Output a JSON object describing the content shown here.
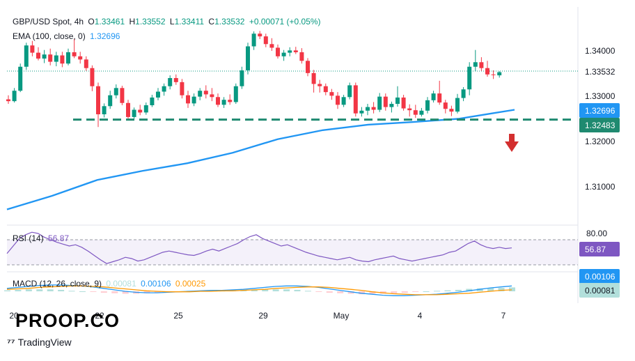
{
  "header": {
    "symbol": "GBP/USD Spot, 4h",
    "open_label": "O",
    "open": "1.33461",
    "high_label": "H",
    "high": "1.33552",
    "low_label": "L",
    "low": "1.33411",
    "close_label": "C",
    "close": "1.33532",
    "change": "+0.00071 (+0.05%)",
    "ema_label": "EMA (100, close, 0)",
    "ema_value": "1.32696",
    "rsi_label": "RSI (14)",
    "rsi_value": "56.87",
    "macd_label": "MACD (12, 26, close, 9)",
    "macd_hist": "0.00081",
    "macd_line": "0.00106",
    "macd_signal": "0.00025"
  },
  "watermark": {
    "brand": "PROOP.CO",
    "provider": "TradingView"
  },
  "colors": {
    "bull": "#089981",
    "bear": "#f23645",
    "ema": "#2196f3",
    "support": "#1f8a70",
    "rsi": "#7e57c2",
    "macd": "#2196f3",
    "signal": "#ff9800",
    "arrow": "#d32f2f"
  },
  "chart_data": {
    "type": "candlestick",
    "price_axis": {
      "ticks": [
        "1.34000",
        "1.33000",
        "1.32000",
        "1.31000"
      ],
      "range": [
        1.3045,
        1.3475
      ]
    },
    "price_badges": {
      "last": "1.33532",
      "ema": "1.32696",
      "support": "1.32483"
    },
    "x_labels": [
      "20",
      "22",
      "25",
      "29",
      "May",
      "4",
      "7"
    ],
    "candles": [
      [
        1.3293,
        1.3302,
        1.3283,
        1.3289
      ],
      [
        1.3289,
        1.3318,
        1.3286,
        1.3312
      ],
      [
        1.3312,
        1.3372,
        1.3309,
        1.3365
      ],
      [
        1.3365,
        1.3418,
        1.3358,
        1.3412
      ],
      [
        1.3412,
        1.3422,
        1.3388,
        1.3396
      ],
      [
        1.3396,
        1.3408,
        1.3379,
        1.3383
      ],
      [
        1.3383,
        1.3402,
        1.3373,
        1.3392
      ],
      [
        1.3392,
        1.3405,
        1.3368,
        1.3376
      ],
      [
        1.3376,
        1.3398,
        1.3366,
        1.339
      ],
      [
        1.339,
        1.3398,
        1.3364,
        1.3372
      ],
      [
        1.3372,
        1.3405,
        1.3368,
        1.3397
      ],
      [
        1.3397,
        1.3426,
        1.3384,
        1.3388
      ],
      [
        1.3388,
        1.3398,
        1.3372,
        1.3381
      ],
      [
        1.3381,
        1.3388,
        1.3356,
        1.3362
      ],
      [
        1.3362,
        1.3368,
        1.3311,
        1.3322
      ],
      [
        1.3322,
        1.333,
        1.3232,
        1.326
      ],
      [
        1.326,
        1.3284,
        1.3253,
        1.3278
      ],
      [
        1.3278,
        1.3312,
        1.3272,
        1.3302
      ],
      [
        1.3302,
        1.3326,
        1.3295,
        1.3318
      ],
      [
        1.3318,
        1.3323,
        1.328,
        1.3285
      ],
      [
        1.3285,
        1.3292,
        1.3247,
        1.3254
      ],
      [
        1.3254,
        1.3275,
        1.325,
        1.327
      ],
      [
        1.327,
        1.3281,
        1.3258,
        1.3264
      ],
      [
        1.3264,
        1.3286,
        1.3259,
        1.328
      ],
      [
        1.328,
        1.3303,
        1.3276,
        1.3297
      ],
      [
        1.3297,
        1.3318,
        1.3291,
        1.331
      ],
      [
        1.331,
        1.3328,
        1.3301,
        1.3322
      ],
      [
        1.3322,
        1.3346,
        1.3315,
        1.334
      ],
      [
        1.334,
        1.3348,
        1.3325,
        1.3331
      ],
      [
        1.3331,
        1.3338,
        1.3295,
        1.3302
      ],
      [
        1.3302,
        1.3312,
        1.3274,
        1.3284
      ],
      [
        1.3284,
        1.3306,
        1.3278,
        1.3299
      ],
      [
        1.3299,
        1.3318,
        1.3291,
        1.3312
      ],
      [
        1.3312,
        1.3324,
        1.3295,
        1.3304
      ],
      [
        1.3304,
        1.3318,
        1.3289,
        1.3298
      ],
      [
        1.3298,
        1.3306,
        1.3276,
        1.3281
      ],
      [
        1.3281,
        1.3298,
        1.3274,
        1.3292
      ],
      [
        1.3292,
        1.3304,
        1.3281,
        1.3287
      ],
      [
        1.3287,
        1.3328,
        1.3283,
        1.3322
      ],
      [
        1.3322,
        1.3365,
        1.3316,
        1.3357
      ],
      [
        1.3357,
        1.3418,
        1.3348,
        1.341
      ],
      [
        1.341,
        1.3443,
        1.3402,
        1.3438
      ],
      [
        1.3438,
        1.3444,
        1.3426,
        1.3432
      ],
      [
        1.3432,
        1.3438,
        1.3408,
        1.3415
      ],
      [
        1.3415,
        1.3428,
        1.34,
        1.3407
      ],
      [
        1.3407,
        1.3414,
        1.3383,
        1.3388
      ],
      [
        1.3388,
        1.3402,
        1.3378,
        1.3396
      ],
      [
        1.3396,
        1.3408,
        1.3388,
        1.3401
      ],
      [
        1.3401,
        1.3409,
        1.3393,
        1.3397
      ],
      [
        1.3397,
        1.3406,
        1.3372,
        1.3378
      ],
      [
        1.3378,
        1.3384,
        1.3344,
        1.3351
      ],
      [
        1.3351,
        1.3358,
        1.3308,
        1.3327
      ],
      [
        1.3327,
        1.3336,
        1.3308,
        1.3322
      ],
      [
        1.3322,
        1.3328,
        1.3302,
        1.3309
      ],
      [
        1.3309,
        1.3316,
        1.3292,
        1.3301
      ],
      [
        1.3301,
        1.3309,
        1.3272,
        1.3281
      ],
      [
        1.3281,
        1.3303,
        1.3276,
        1.3298
      ],
      [
        1.3298,
        1.333,
        1.3293,
        1.3324
      ],
      [
        1.3324,
        1.333,
        1.3255,
        1.3262
      ],
      [
        1.3262,
        1.3276,
        1.3255,
        1.3268
      ],
      [
        1.3268,
        1.3283,
        1.3258,
        1.3276
      ],
      [
        1.3276,
        1.3287,
        1.3262,
        1.327
      ],
      [
        1.327,
        1.3307,
        1.3265,
        1.3299
      ],
      [
        1.3299,
        1.3306,
        1.3268,
        1.3276
      ],
      [
        1.3276,
        1.3288,
        1.3264,
        1.3283
      ],
      [
        1.3283,
        1.3322,
        1.3277,
        1.3297
      ],
      [
        1.3297,
        1.3303,
        1.3268,
        1.3273
      ],
      [
        1.3273,
        1.3282,
        1.3255,
        1.3269
      ],
      [
        1.3269,
        1.3281,
        1.3252,
        1.3259
      ],
      [
        1.3259,
        1.3274,
        1.3255,
        1.3268
      ],
      [
        1.3268,
        1.3298,
        1.3262,
        1.3291
      ],
      [
        1.3291,
        1.3312,
        1.3286,
        1.3306
      ],
      [
        1.3306,
        1.3334,
        1.3281,
        1.3286
      ],
      [
        1.3286,
        1.3292,
        1.3262,
        1.3272
      ],
      [
        1.3272,
        1.3279,
        1.3256,
        1.3266
      ],
      [
        1.3266,
        1.3305,
        1.3262,
        1.3296
      ],
      [
        1.3296,
        1.332,
        1.3289,
        1.3315
      ],
      [
        1.3315,
        1.3375,
        1.3302,
        1.3365
      ],
      [
        1.3365,
        1.3402,
        1.3355,
        1.3375
      ],
      [
        1.3375,
        1.3386,
        1.3356,
        1.3362
      ],
      [
        1.3362,
        1.3378,
        1.3343,
        1.3348
      ],
      [
        1.3348,
        1.3357,
        1.3338,
        1.3347
      ],
      [
        1.3346,
        1.3355,
        1.3341,
        1.3353
      ]
    ],
    "ema": [
      [
        0,
        1.305
      ],
      [
        8,
        1.308
      ],
      [
        16,
        1.3115
      ],
      [
        24,
        1.3135
      ],
      [
        32,
        1.3152
      ],
      [
        40,
        1.3175
      ],
      [
        48,
        1.3205
      ],
      [
        56,
        1.3225
      ],
      [
        64,
        1.3237
      ],
      [
        72,
        1.3243
      ],
      [
        80,
        1.325
      ],
      [
        86,
        1.3262
      ],
      [
        90,
        1.327
      ]
    ],
    "support_level": 1.32483,
    "rsi": {
      "range": [
        0,
        100
      ],
      "ticks": [
        "80.00"
      ],
      "bands": [
        70,
        30
      ],
      "value": "56.87",
      "series": [
        48,
        60,
        72,
        78,
        82,
        80,
        74,
        70,
        66,
        63,
        60,
        62,
        58,
        52,
        45,
        38,
        32,
        35,
        38,
        42,
        40,
        36,
        38,
        42,
        46,
        50,
        52,
        50,
        48,
        46,
        45,
        48,
        52,
        55,
        52,
        56,
        60,
        64,
        70,
        75,
        78,
        72,
        68,
        64,
        60,
        62,
        58,
        54,
        50,
        47,
        44,
        42,
        40,
        38,
        40,
        42,
        38,
        36,
        35,
        38,
        40,
        42,
        44,
        40,
        38,
        36,
        38,
        40,
        42,
        44,
        46,
        50,
        52,
        58,
        64,
        68,
        62,
        58,
        56,
        58,
        56,
        57
      ]
    },
    "macd": {
      "badges": [
        "0.00106",
        "0.00081"
      ],
      "line": [
        0.0006,
        0.0008,
        0.001,
        0.0012,
        0.0013,
        0.0013,
        0.0012,
        0.0011,
        0.0009,
        0.0006,
        0.0003,
        0.0,
        -0.0002,
        -0.0003,
        -0.0003,
        -0.0002,
        -0.0001,
        0.0,
        0.0001,
        0.0002,
        0.0002,
        0.0003,
        0.0004,
        0.0006,
        0.0008,
        0.001,
        0.0011,
        0.0011,
        0.001,
        0.0008,
        0.0005,
        0.0002,
        -0.0001,
        -0.0004,
        -0.0006,
        -0.0008,
        -0.0009,
        -0.0009,
        -0.0008,
        -0.0007,
        -0.0006,
        -0.0004,
        -0.0002,
        0.0001,
        0.0004,
        0.0007,
        0.0009,
        0.0011
      ],
      "signal": [
        0.0004,
        0.0005,
        0.0006,
        0.0008,
        0.0009,
        0.001,
        0.0011,
        0.0011,
        0.001,
        0.0009,
        0.0007,
        0.0005,
        0.0003,
        0.0001,
        0.0,
        -0.0001,
        -0.0001,
        -0.0001,
        0.0,
        0.0,
        0.0001,
        0.0001,
        0.0002,
        0.0003,
        0.0004,
        0.0006,
        0.0007,
        0.0008,
        0.0009,
        0.0009,
        0.0008,
        0.0006,
        0.0004,
        0.0002,
        -0.0001,
        -0.0003,
        -0.0005,
        -0.0006,
        -0.0007,
        -0.0007,
        -0.0007,
        -0.0006,
        -0.0005,
        -0.0004,
        -0.0002,
        0.0,
        0.0002,
        0.0003
      ]
    }
  }
}
